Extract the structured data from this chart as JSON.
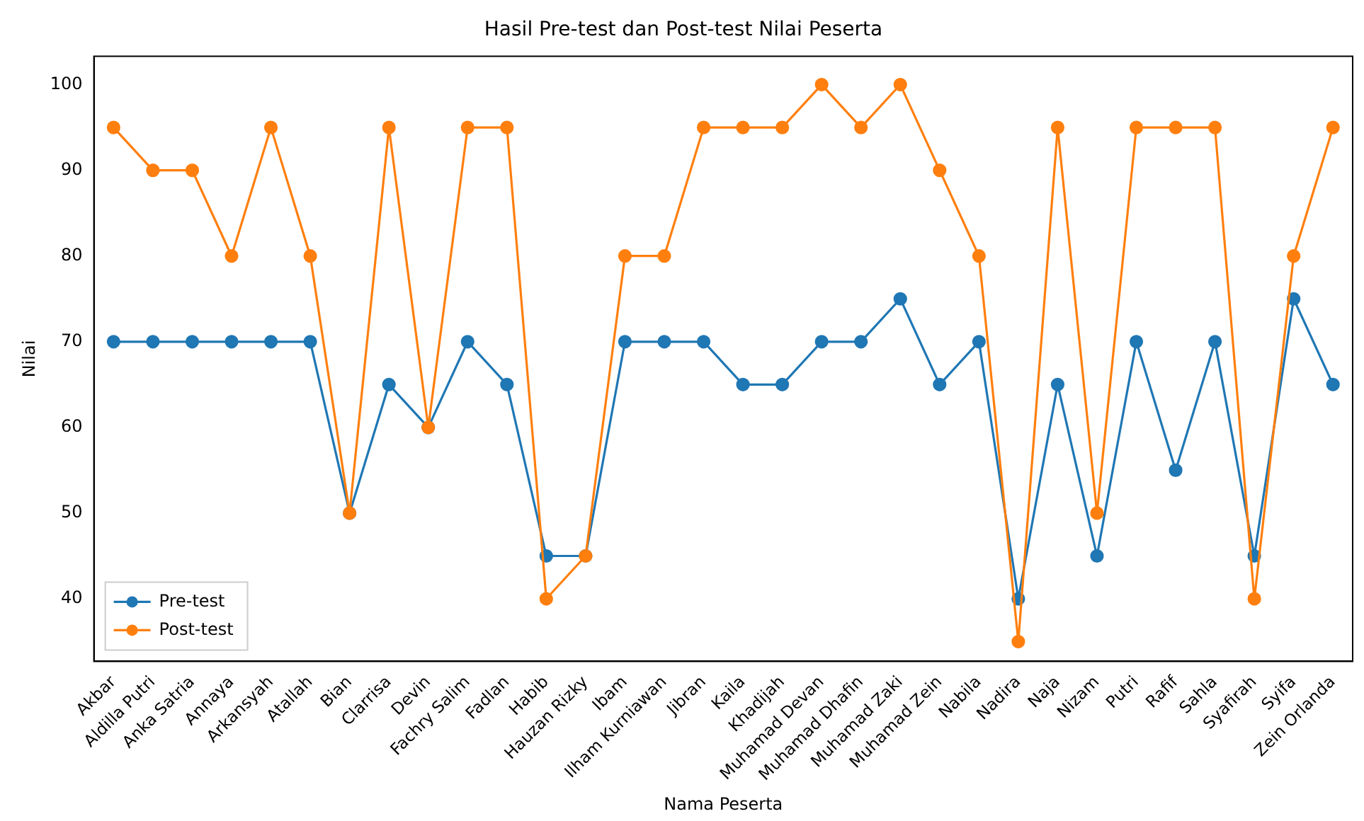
{
  "chart_data": {
    "type": "line",
    "title": "Hasil Pre-test dan Post-test Nilai Peserta",
    "xlabel": "Nama Peserta",
    "ylabel": "Nilai",
    "categories": [
      "Akbar",
      "Aldilla Putri",
      "Anka Satria",
      "Annaya",
      "Arkansyah",
      "Atallah",
      "Bian",
      "Clarrisa",
      "Devin",
      "Fachry Salim",
      "Fadlan",
      "Habib",
      "Hauzan Rizky",
      "Ibam",
      "Ilham Kurniawan",
      "Jibran",
      "Kaila",
      "Khadijah",
      "Muhamad Devan",
      "Muhamad Dhafin",
      "Muhamad Zaki",
      "Muhamad Zein",
      "Nabila",
      "Nadira",
      "Naja",
      "Nizam",
      "Putri",
      "Rafif",
      "Sahla",
      "Syafirah",
      "Syifa",
      "Zein Orlanda"
    ],
    "series": [
      {
        "name": "Pre-test",
        "color": "#1f77b4",
        "values": [
          70,
          70,
          70,
          70,
          70,
          70,
          50,
          65,
          60,
          70,
          65,
          45,
          45,
          70,
          70,
          70,
          65,
          65,
          70,
          70,
          75,
          65,
          70,
          40,
          65,
          45,
          70,
          55,
          70,
          45,
          75,
          65
        ]
      },
      {
        "name": "Post-test",
        "color": "#ff7f0e",
        "values": [
          95,
          90,
          90,
          80,
          95,
          80,
          50,
          95,
          60,
          95,
          95,
          40,
          45,
          80,
          80,
          95,
          95,
          95,
          100,
          95,
          100,
          90,
          80,
          35,
          95,
          50,
          95,
          95,
          95,
          40,
          80,
          95
        ]
      }
    ],
    "ylim": [
      32.7,
      103.3
    ],
    "yticks": [
      40,
      50,
      60,
      70,
      80,
      90,
      100
    ],
    "legend": "bottom left",
    "marker": "circle",
    "line_style": "solid"
  }
}
